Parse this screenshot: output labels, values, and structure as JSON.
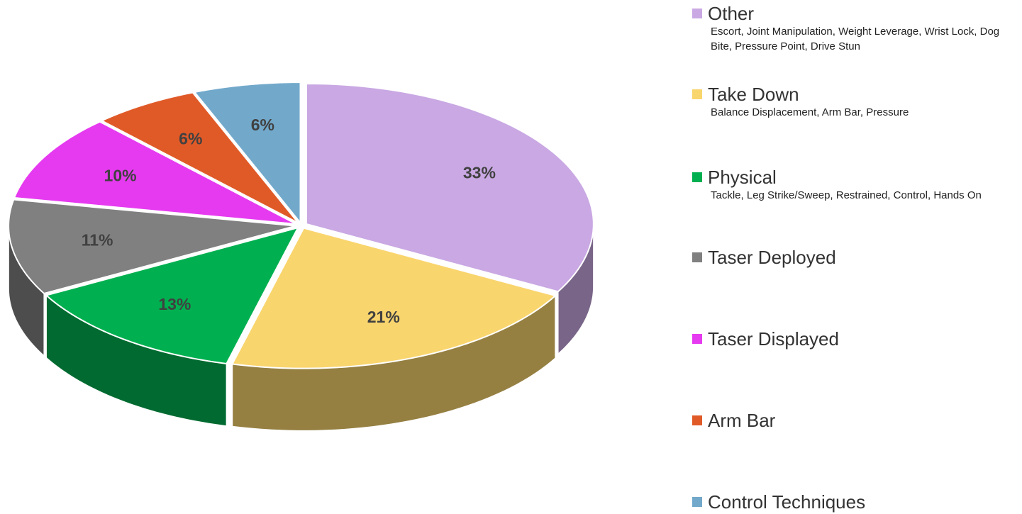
{
  "chart_data": {
    "type": "pie",
    "categories": [
      "Other",
      "Take Down",
      "Physical",
      "Taser Deployed",
      "Taser Displayed",
      "Arm Bar",
      "Control Techniques"
    ],
    "descriptions": [
      "Escort, Joint Manipulation, Weight Leverage, Wrist Lock, Dog Bite, Pressure Point, Drive Stun",
      "Balance Displacement, Arm Bar, Pressure",
      "Tackle, Leg Strike/Sweep, Restrained, Control, Hands On",
      null,
      null,
      null,
      null
    ],
    "values": [
      33,
      21,
      13,
      11,
      10,
      6,
      6
    ],
    "value_labels": [
      "33%",
      "21%",
      "13%",
      "11%",
      "10%",
      "6%",
      "6%"
    ],
    "colors": [
      "#c9a8e3",
      "#f9d56e",
      "#00b050",
      "#808080",
      "#e63af0",
      "#e05a28",
      "#72a9cb"
    ],
    "legend": "right"
  }
}
